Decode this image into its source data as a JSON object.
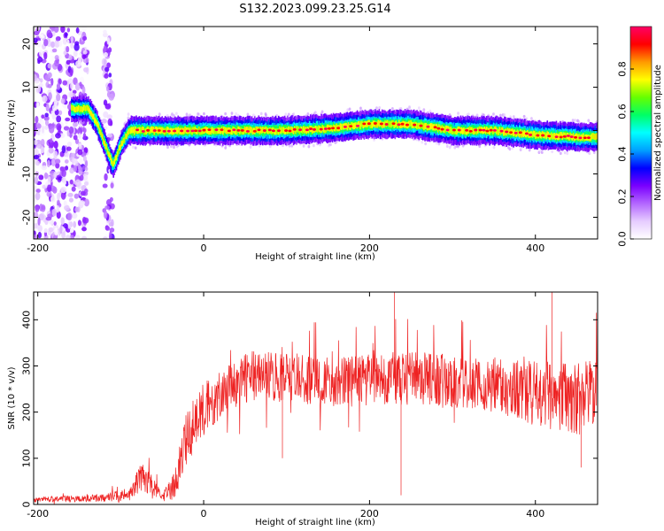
{
  "title": "S132.2023.099.23.25.G14",
  "chart_data": [
    {
      "type": "heatmap",
      "xlabel": "Height of straight line (km)",
      "ylabel": "Frequency (Hz)",
      "xlim": [
        -205,
        475
      ],
      "ylim": [
        -25,
        24
      ],
      "xticks": [
        -200,
        0,
        200,
        400
      ],
      "yticks": [
        -20,
        -10,
        0,
        10,
        20
      ],
      "colorbar": {
        "label": "Normalized spectral amplitude",
        "range": [
          0,
          1
        ],
        "ticks": [
          "0.0",
          "0.2",
          "0.4",
          "0.6",
          "0.8"
        ],
        "colormap": [
          "#ffffff",
          "#e6ccff",
          "#b366ff",
          "#7a00ff",
          "#0000ff",
          "#00a0ff",
          "#00ffff",
          "#00ff66",
          "#66ff00",
          "#ffff00",
          "#ff9900",
          "#ff0000",
          "#ff0066"
        ]
      },
      "ridge": {
        "x": [
          -150,
          -140,
          -130,
          -120,
          -110,
          -100,
          -90,
          -60,
          0,
          50,
          100,
          150,
          200,
          250,
          300,
          350,
          400,
          450,
          475
        ],
        "freq": [
          5,
          5,
          2,
          -3,
          -8,
          -3,
          0,
          0,
          0,
          0,
          0,
          0.5,
          1.5,
          1.5,
          0,
          0,
          -1,
          -1.5,
          -1.5
        ]
      },
      "noise_columns": [
        {
          "x_from": -205,
          "x_to": -140
        },
        {
          "x_from": -120,
          "x_to": -110
        }
      ]
    },
    {
      "type": "line",
      "xlabel": "Height of straight line (km)",
      "ylabel": "SNR (10 * v/v)",
      "xlim": [
        -205,
        475
      ],
      "ylim": [
        0,
        460
      ],
      "xticks": [
        -200,
        0,
        200,
        400
      ],
      "yticks": [
        0,
        100,
        200,
        300,
        400
      ],
      "series_color": "#ee2222",
      "envelope": {
        "x": [
          -205,
          -120,
          -90,
          -75,
          -65,
          -50,
          -35,
          -20,
          0,
          20,
          40,
          60,
          100,
          150,
          200,
          250,
          300,
          350,
          400,
          450,
          475
        ],
        "center": [
          10,
          14,
          22,
          60,
          45,
          15,
          40,
          150,
          210,
          240,
          265,
          280,
          275,
          265,
          270,
          275,
          265,
          260,
          240,
          230,
          235
        ],
        "spread": [
          6,
          8,
          15,
          30,
          25,
          10,
          30,
          60,
          60,
          55,
          55,
          55,
          55,
          55,
          55,
          60,
          60,
          60,
          70,
          80,
          80
        ]
      },
      "spikes": [
        {
          "x": 238,
          "y": 20
        },
        {
          "x": 230,
          "y": 460
        },
        {
          "x": 420,
          "y": 460
        },
        {
          "x": 95,
          "y": 100
        },
        {
          "x": 455,
          "y": 80
        }
      ]
    }
  ]
}
